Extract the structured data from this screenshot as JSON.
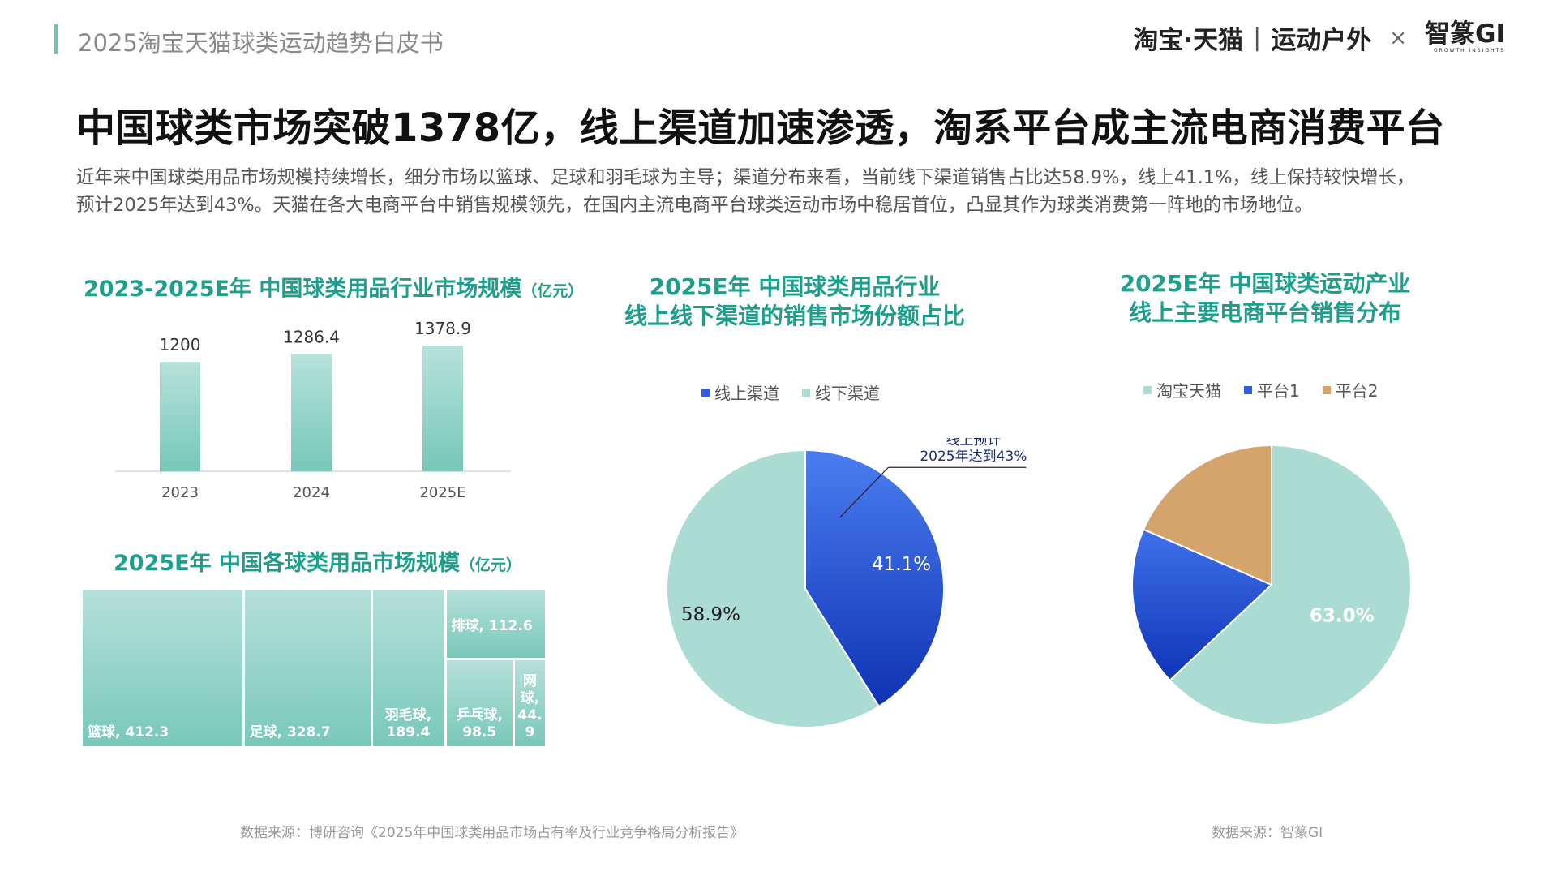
{
  "header": {
    "report_title": "2025淘宝天猫球类运动趋势白皮书",
    "brand_main": "淘宝·天猫",
    "brand_sep": "|",
    "brand_sub": "运动户外",
    "brand_x": "×",
    "logo": "智篆GI",
    "logo_sub": "GROWTH INSIGHTS"
  },
  "headline": "中国球类市场突破1378亿，线上渠道加速渗透，淘系平台成主流电商消费平台",
  "intro": {
    "line1": "近年来中国球类用品市场规模持续增长，细分市场以篮球、足球和羽毛球为主导；渠道分布来看，当前线下渠道销售占比达58.9%，线上41.1%，线上保持较快增长，",
    "line2": "预计2025年达到43%。天猫在各大电商平台中销售规模领先，在国内主流电商平台球类运动市场中稳居首位，凸显其作为球类消费第一阵地的市场地位。"
  },
  "colors": {
    "teal_title": "#1e9e8c",
    "teal_light": "#aadcd4",
    "blue": "#2f5fe0",
    "tan": "#d4a46c",
    "text_gray": "#555555"
  },
  "chart_data": [
    {
      "type": "bar",
      "title": "2023-2025E年 中国球类用品行业市场规模",
      "unit": "（亿元）",
      "categories": [
        "2023",
        "2024",
        "2025E"
      ],
      "values": [
        1200,
        1286.4,
        1378.9
      ],
      "value_labels": [
        "1200",
        "1286.4",
        "1378.9"
      ],
      "ylim": [
        0,
        1378.9
      ],
      "grid": false
    },
    {
      "type": "treemap",
      "title": "2025E年 中国各球类用品市场规模",
      "unit": "（亿元）",
      "items": [
        {
          "name": "篮球",
          "value": 412.3,
          "label": "篮球, 412.3"
        },
        {
          "name": "足球",
          "value": 328.7,
          "label": "足球, 328.7"
        },
        {
          "name": "羽毛球",
          "value": 189.4,
          "label": "羽毛球, 189.4"
        },
        {
          "name": "排球",
          "value": 112.6,
          "label": "排球, 112.6"
        },
        {
          "name": "乒乓球",
          "value": 98.5,
          "label": "乒乓球, 98.5"
        },
        {
          "name": "网球",
          "value": 44.9,
          "label": "网球, 44.9"
        }
      ]
    },
    {
      "type": "pie",
      "title_lines": [
        "2025E年 中国球类用品行业",
        "线上线下渠道的销售市场份额占比"
      ],
      "legend_position": "top",
      "series": [
        {
          "name": "线上渠道",
          "value": 41.1,
          "label": "41.1%",
          "color": "#2f5fe0"
        },
        {
          "name": "线下渠道",
          "value": 58.9,
          "label": "58.9%",
          "color": "#aadcd4"
        }
      ],
      "annotation": [
        "线上预计",
        "2025年达到43%"
      ]
    },
    {
      "type": "pie",
      "title_lines": [
        "2025E年 中国球类运动产业",
        "线上主要电商平台销售分布"
      ],
      "legend_position": "top",
      "series": [
        {
          "name": "淘宝天猫",
          "value": 63.0,
          "label": "63.0%",
          "color": "#aadcd4"
        },
        {
          "name": "平台1",
          "value": 18.5,
          "label": "",
          "color": "#2f5fe0"
        },
        {
          "name": "平台2",
          "value": 18.5,
          "label": "",
          "color": "#d4a46c"
        }
      ]
    }
  ],
  "sources": {
    "left": "数据来源：博研咨询《2025年中国球类用品市场占有率及行业竞争格局分析报告》",
    "right": "数据来源：智篆GI"
  }
}
